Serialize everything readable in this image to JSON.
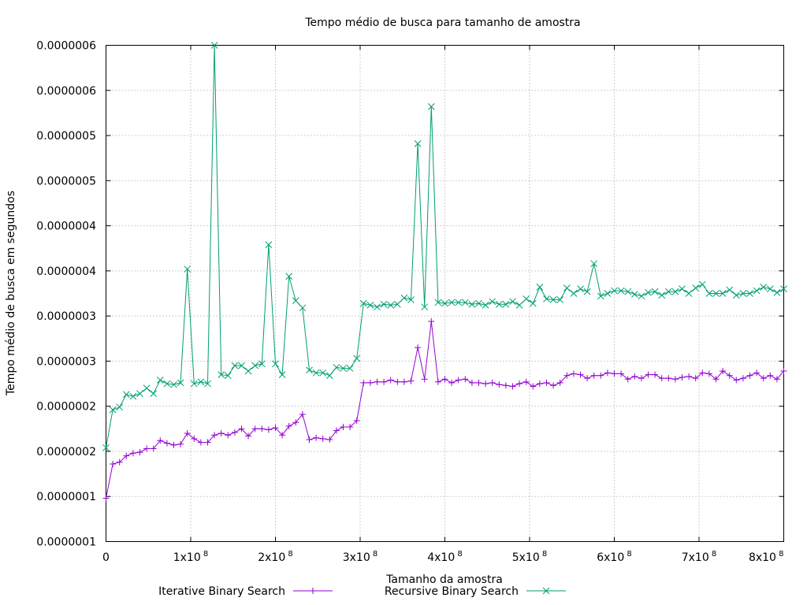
{
  "chart_data": {
    "type": "line",
    "title": "Tempo médio de busca para tamanho de amostra",
    "xlabel": "Tamanho da amostra",
    "ylabel": "Tempo médio de busca em segundos",
    "xlim": [
      0,
      800000000
    ],
    "ylim": [
      5e-08,
      6e-07
    ],
    "x_ticks": [
      {
        "value": 0,
        "label": "0",
        "exp": ""
      },
      {
        "value": 100000000,
        "label": "1x10",
        "exp": "8"
      },
      {
        "value": 200000000,
        "label": "2x10",
        "exp": "8"
      },
      {
        "value": 300000000,
        "label": "3x10",
        "exp": "8"
      },
      {
        "value": 400000000,
        "label": "4x10",
        "exp": "8"
      },
      {
        "value": 500000000,
        "label": "5x10",
        "exp": "8"
      },
      {
        "value": 600000000,
        "label": "6x10",
        "exp": "8"
      },
      {
        "value": 700000000,
        "label": "7x10",
        "exp": "8"
      },
      {
        "value": 800000000,
        "label": "8x10",
        "exp": "8"
      }
    ],
    "y_ticks": [
      {
        "value": 5e-08,
        "label": "0.0000001"
      },
      {
        "value": 1e-07,
        "label": "0.0000001"
      },
      {
        "value": 1.5e-07,
        "label": "0.0000002"
      },
      {
        "value": 2e-07,
        "label": "0.0000002"
      },
      {
        "value": 2.5e-07,
        "label": "0.0000003"
      },
      {
        "value": 3e-07,
        "label": "0.0000003"
      },
      {
        "value": 3.5e-07,
        "label": "0.0000004"
      },
      {
        "value": 4e-07,
        "label": "0.0000004"
      },
      {
        "value": 4.5e-07,
        "label": "0.0000005"
      },
      {
        "value": 5e-07,
        "label": "0.0000005"
      },
      {
        "value": 5.5e-07,
        "label": "0.0000006"
      },
      {
        "value": 6e-07,
        "label": "0.0000006"
      }
    ],
    "grid": true,
    "legend_position": "bottom",
    "x": [
      0,
      8000000,
      16000000,
      24000000,
      32000000,
      40000000,
      48000000,
      56000000,
      64000000,
      72000000,
      80000000,
      88000000,
      96000000,
      104000000,
      112000000,
      120000000,
      128000000,
      136000000,
      144000000,
      152000000,
      160000000,
      168000000,
      176000000,
      184000000,
      192000000,
      200000000,
      208000000,
      216000000,
      224000000,
      232000000,
      240000000,
      248000000,
      256000000,
      264000000,
      272000000,
      280000000,
      288000000,
      296000000,
      304000000,
      312000000,
      320000000,
      328000000,
      336000000,
      344000000,
      352000000,
      360000000,
      368000000,
      376000000,
      384000000,
      392000000,
      400000000,
      408000000,
      416000000,
      424000000,
      432000000,
      440000000,
      448000000,
      456000000,
      464000000,
      472000000,
      480000000,
      488000000,
      496000000,
      504000000,
      512000000,
      520000000,
      528000000,
      536000000,
      544000000,
      552000000,
      560000000,
      568000000,
      576000000,
      584000000,
      592000000,
      600000000,
      608000000,
      616000000,
      624000000,
      632000000,
      640000000,
      648000000,
      656000000,
      664000000,
      672000000,
      680000000,
      688000000,
      696000000,
      704000000,
      712000000,
      720000000,
      728000000,
      736000000,
      744000000,
      752000000,
      760000000,
      768000000,
      776000000,
      784000000,
      792000000,
      800000000
    ],
    "series": [
      {
        "name": "Iterative Binary Search",
        "color": "#9400d3",
        "marker": "plus",
        "values": [
          9.8e-08,
          1.36e-07,
          1.38e-07,
          1.45e-07,
          1.48e-07,
          1.49e-07,
          1.53e-07,
          1.53e-07,
          1.62e-07,
          1.59e-07,
          1.57e-07,
          1.58e-07,
          1.7e-07,
          1.64e-07,
          1.6e-07,
          1.6e-07,
          1.68e-07,
          1.7e-07,
          1.68e-07,
          1.71e-07,
          1.75e-07,
          1.67e-07,
          1.75e-07,
          1.75e-07,
          1.74e-07,
          1.76e-07,
          1.68e-07,
          1.78e-07,
          1.82e-07,
          1.91e-07,
          1.63e-07,
          1.65e-07,
          1.64e-07,
          1.63e-07,
          1.73e-07,
          1.77e-07,
          1.77e-07,
          1.84e-07,
          2.26e-07,
          2.26e-07,
          2.27e-07,
          2.27e-07,
          2.29e-07,
          2.27e-07,
          2.27e-07,
          2.28e-07,
          2.65e-07,
          2.3e-07,
          2.94e-07,
          2.27e-07,
          2.3e-07,
          2.26e-07,
          2.29e-07,
          2.3e-07,
          2.26e-07,
          2.26e-07,
          2.25e-07,
          2.26e-07,
          2.24e-07,
          2.23e-07,
          2.22e-07,
          2.25e-07,
          2.27e-07,
          2.22e-07,
          2.25e-07,
          2.26e-07,
          2.23e-07,
          2.26e-07,
          2.34e-07,
          2.36e-07,
          2.35e-07,
          2.31e-07,
          2.34e-07,
          2.34e-07,
          2.37e-07,
          2.36e-07,
          2.36e-07,
          2.3e-07,
          2.33e-07,
          2.31e-07,
          2.35e-07,
          2.35e-07,
          2.31e-07,
          2.31e-07,
          2.3e-07,
          2.32e-07,
          2.33e-07,
          2.31e-07,
          2.37e-07,
          2.36e-07,
          2.3e-07,
          2.39e-07,
          2.34e-07,
          2.29e-07,
          2.31e-07,
          2.34e-07,
          2.37e-07,
          2.31e-07,
          2.34e-07,
          2.3e-07,
          2.39e-07
        ]
      },
      {
        "name": "Recursive Binary Search",
        "color": "#009e73",
        "marker": "x",
        "values": [
          1.54e-07,
          1.96e-07,
          1.99e-07,
          2.13e-07,
          2.11e-07,
          2.14e-07,
          2.2e-07,
          2.14e-07,
          2.29e-07,
          2.25e-07,
          2.24e-07,
          2.26e-07,
          3.52e-07,
          2.25e-07,
          2.27e-07,
          2.25e-07,
          6e-07,
          2.35e-07,
          2.34e-07,
          2.45e-07,
          2.45e-07,
          2.39e-07,
          2.45e-07,
          2.47e-07,
          3.79e-07,
          2.47e-07,
          2.35e-07,
          3.44e-07,
          3.17e-07,
          3.09e-07,
          2.4e-07,
          2.37e-07,
          2.37e-07,
          2.34e-07,
          2.43e-07,
          2.42e-07,
          2.42e-07,
          2.53e-07,
          3.14e-07,
          3.12e-07,
          3.1e-07,
          3.13e-07,
          3.12e-07,
          3.13e-07,
          3.2e-07,
          3.18e-07,
          4.91e-07,
          3.1e-07,
          5.32e-07,
          3.15e-07,
          3.14e-07,
          3.15e-07,
          3.15e-07,
          3.15e-07,
          3.13e-07,
          3.14e-07,
          3.12e-07,
          3.16e-07,
          3.13e-07,
          3.13e-07,
          3.16e-07,
          3.12e-07,
          3.19e-07,
          3.14e-07,
          3.32e-07,
          3.19e-07,
          3.18e-07,
          3.18e-07,
          3.31e-07,
          3.25e-07,
          3.3e-07,
          3.27e-07,
          3.58e-07,
          3.22e-07,
          3.25e-07,
          3.28e-07,
          3.28e-07,
          3.27e-07,
          3.24e-07,
          3.22e-07,
          3.26e-07,
          3.27e-07,
          3.23e-07,
          3.27e-07,
          3.27e-07,
          3.3e-07,
          3.25e-07,
          3.31e-07,
          3.35e-07,
          3.25e-07,
          3.25e-07,
          3.25e-07,
          3.29e-07,
          3.23e-07,
          3.25e-07,
          3.25e-07,
          3.28e-07,
          3.32e-07,
          3.3e-07,
          3.26e-07,
          3.3e-07
        ]
      }
    ]
  }
}
